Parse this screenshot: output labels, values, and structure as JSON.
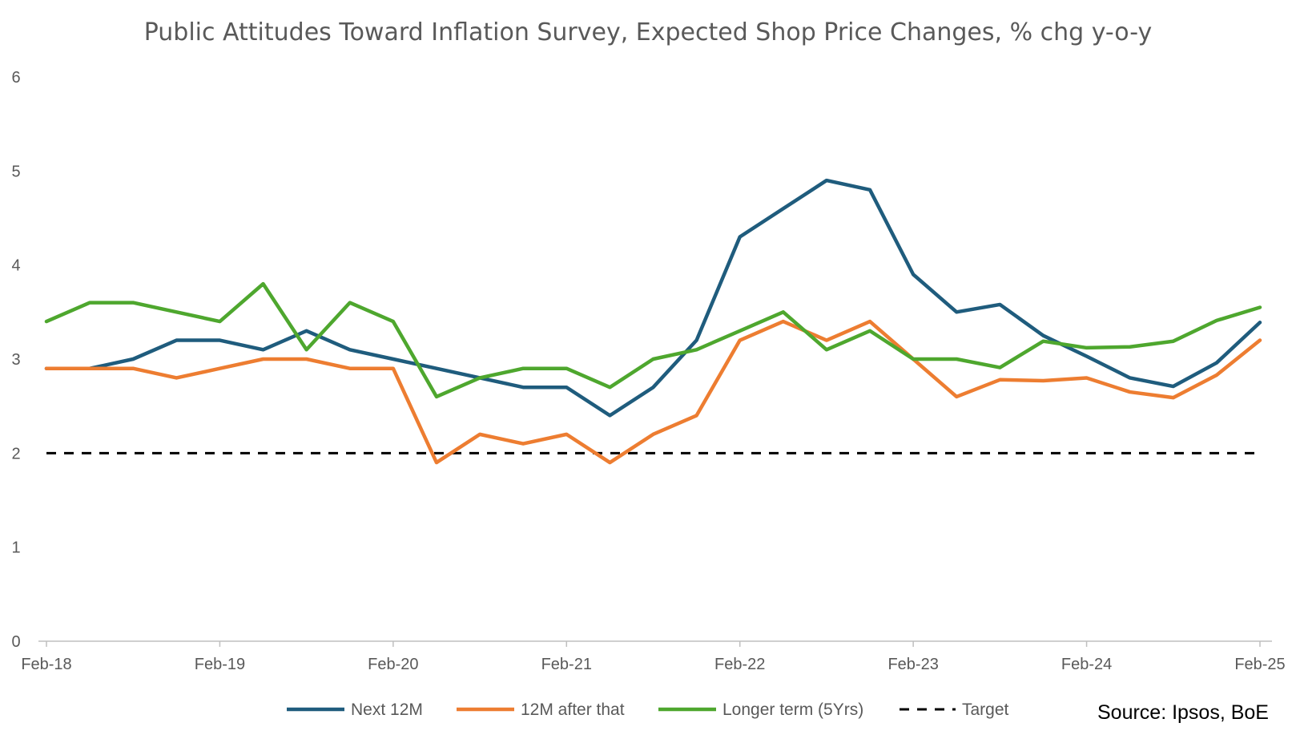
{
  "chart_data": {
    "type": "line",
    "title": "Public Attitudes Toward Inflation Survey, Expected Shop Price Changes, % chg y-o-y",
    "xlabel": "",
    "ylabel": "",
    "ylim": [
      0,
      6
    ],
    "yticks": [
      "0",
      "1",
      "2",
      "3",
      "4",
      "5",
      "6"
    ],
    "xtick_labels": [
      "Feb-18",
      "Feb-19",
      "Feb-20",
      "Feb-21",
      "Feb-22",
      "Feb-23",
      "Feb-24",
      "Feb-25"
    ],
    "x_period": "quarterly, Feb-18 to Feb-25",
    "grid": false,
    "legend_position": "bottom",
    "series": [
      {
        "name": "Next 12M",
        "color": "#1F5C7D",
        "dash": "solid",
        "values": [
          2.9,
          2.9,
          3.0,
          3.2,
          3.2,
          3.1,
          3.3,
          3.1,
          3.0,
          2.9,
          2.8,
          2.7,
          2.7,
          2.4,
          2.7,
          3.2,
          4.3,
          4.6,
          4.9,
          4.8,
          3.9,
          3.5,
          3.58,
          3.25,
          3.03,
          2.8,
          2.71,
          2.96,
          3.39
        ]
      },
      {
        "name": "12M after that",
        "color": "#ED7D31",
        "dash": "solid",
        "values": [
          2.9,
          2.9,
          2.9,
          2.8,
          2.9,
          3.0,
          3.0,
          2.9,
          2.9,
          1.9,
          2.2,
          2.1,
          2.2,
          1.9,
          2.2,
          2.4,
          3.2,
          3.4,
          3.2,
          3.4,
          3.0,
          2.6,
          2.78,
          2.77,
          2.8,
          2.65,
          2.59,
          2.83,
          3.2
        ]
      },
      {
        "name": "Longer term (5Yrs)",
        "color": "#4EA72E",
        "dash": "solid",
        "values": [
          3.4,
          3.6,
          3.6,
          3.5,
          3.4,
          3.8,
          3.1,
          3.6,
          3.4,
          2.6,
          2.8,
          2.9,
          2.9,
          2.7,
          3.0,
          3.1,
          3.3,
          3.5,
          3.1,
          3.3,
          3.0,
          3.0,
          2.91,
          3.19,
          3.12,
          3.13,
          3.19,
          3.41,
          3.55
        ]
      },
      {
        "name": "Target",
        "color": "#000000",
        "dash": "dashed",
        "values": [
          2,
          2,
          2,
          2,
          2,
          2,
          2,
          2,
          2,
          2,
          2,
          2,
          2,
          2,
          2,
          2,
          2,
          2,
          2,
          2,
          2,
          2,
          2,
          2,
          2,
          2,
          2,
          2,
          2
        ]
      }
    ],
    "source": "Source: Ipsos, BoE"
  }
}
